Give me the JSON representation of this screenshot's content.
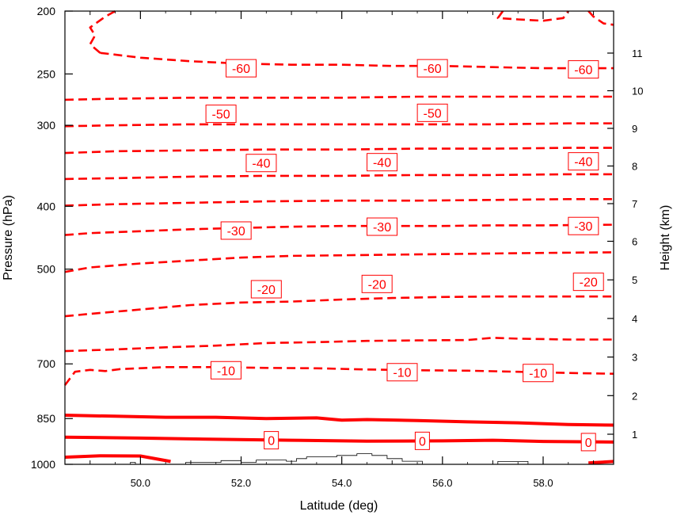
{
  "chart_data": {
    "type": "contour",
    "xlabel": "Latitude (deg)",
    "ylabel_left": "Pressure (hPa)",
    "ylabel_right": "Height (km)",
    "xlim": [
      48.5,
      59.4
    ],
    "x_ticks": [
      {
        "value": 50,
        "label": "50.0"
      },
      {
        "value": 52,
        "label": "52.0"
      },
      {
        "value": 54,
        "label": "54.0"
      },
      {
        "value": 56,
        "label": "56.0"
      },
      {
        "value": 58,
        "label": "58.0"
      }
    ],
    "pressure_range": [
      1000,
      200
    ],
    "pressure_scale": "log",
    "pressure_ticks": [
      {
        "value": 200,
        "label": "200"
      },
      {
        "value": 250,
        "label": "250"
      },
      {
        "value": 300,
        "label": "300"
      },
      {
        "value": 400,
        "label": "400"
      },
      {
        "value": 500,
        "label": "500"
      },
      {
        "value": 700,
        "label": "700"
      },
      {
        "value": 850,
        "label": "850"
      },
      {
        "value": 1000,
        "label": "1000"
      }
    ],
    "height_ticks": [
      {
        "value": 1,
        "label": "1"
      },
      {
        "value": 2,
        "label": "2"
      },
      {
        "value": 3,
        "label": "3"
      },
      {
        "value": 4,
        "label": "4"
      },
      {
        "value": 5,
        "label": "5"
      },
      {
        "value": 6,
        "label": "6"
      },
      {
        "value": 7,
        "label": "7"
      },
      {
        "value": 8,
        "label": "8"
      },
      {
        "value": 9,
        "label": "9"
      },
      {
        "value": 10,
        "label": "10"
      },
      {
        "value": 11,
        "label": "11"
      }
    ],
    "contour_color": "#ff0000",
    "terrain_color": "#000000",
    "contours": [
      {
        "level": -60,
        "points": [
          [
            49.2,
            232
          ],
          [
            50.0,
            236
          ],
          [
            51.0,
            239
          ],
          [
            52.0,
            241
          ],
          [
            53.0,
            242
          ],
          [
            54.0,
            242
          ],
          [
            55.0,
            243
          ],
          [
            56.0,
            243
          ],
          [
            57.0,
            244
          ],
          [
            58.0,
            245
          ],
          [
            59.4,
            245
          ]
        ]
      },
      {
        "level": -50,
        "points": [
          [
            48.5,
            274
          ],
          [
            49.5,
            273
          ],
          [
            51.0,
            272
          ],
          [
            52.5,
            272
          ],
          [
            54.0,
            272
          ],
          [
            55.5,
            271
          ],
          [
            57.0,
            271
          ],
          [
            58.5,
            271
          ],
          [
            59.4,
            271
          ]
        ]
      },
      {
        "level": -50,
        "points": [
          [
            48.5,
            301
          ],
          [
            49.5,
            300
          ],
          [
            51.0,
            299
          ],
          [
            52.5,
            299
          ],
          [
            54.0,
            299
          ],
          [
            55.5,
            299
          ],
          [
            57.0,
            299
          ],
          [
            58.5,
            298
          ],
          [
            59.4,
            298
          ]
        ]
      },
      {
        "level": -40,
        "points": [
          [
            48.5,
            331
          ],
          [
            49.5,
            329
          ],
          [
            51.0,
            328
          ],
          [
            52.5,
            327
          ],
          [
            54.0,
            327
          ],
          [
            55.5,
            326
          ],
          [
            57.0,
            326
          ],
          [
            58.5,
            325
          ],
          [
            59.4,
            325
          ]
        ]
      },
      {
        "level": -40,
        "points": [
          [
            48.5,
            363
          ],
          [
            49.5,
            362
          ],
          [
            51.0,
            360
          ],
          [
            52.5,
            359
          ],
          [
            54.0,
            359
          ],
          [
            55.5,
            358
          ],
          [
            57.0,
            358
          ],
          [
            58.5,
            357
          ],
          [
            59.4,
            357
          ]
        ]
      },
      {
        "level": -30,
        "points": [
          [
            48.5,
            399
          ],
          [
            49.5,
            397
          ],
          [
            51.0,
            395
          ],
          [
            52.5,
            393
          ],
          [
            54.0,
            392
          ],
          [
            55.5,
            392
          ],
          [
            57.0,
            391
          ],
          [
            58.5,
            390
          ],
          [
            59.4,
            390
          ]
        ]
      },
      {
        "level": -30,
        "points": [
          [
            48.5,
            443
          ],
          [
            49.0,
            440
          ],
          [
            50.0,
            437
          ],
          [
            51.0,
            434
          ],
          [
            52.0,
            432
          ],
          [
            53.0,
            430
          ],
          [
            54.0,
            429
          ],
          [
            55.0,
            429
          ],
          [
            56.0,
            429
          ],
          [
            57.0,
            428
          ],
          [
            58.0,
            428
          ],
          [
            59.4,
            427
          ]
        ]
      },
      {
        "level": -20,
        "points": [
          [
            48.5,
            505
          ],
          [
            49.0,
            497
          ],
          [
            50.0,
            490
          ],
          [
            51.0,
            485
          ],
          [
            52.0,
            480
          ],
          [
            53.0,
            477
          ],
          [
            54.0,
            476
          ],
          [
            55.0,
            475
          ],
          [
            56.0,
            474
          ],
          [
            57.0,
            473
          ],
          [
            58.0,
            472
          ],
          [
            59.4,
            471
          ]
        ]
      },
      {
        "level": -20,
        "points": [
          [
            48.5,
            591
          ],
          [
            49.0,
            586
          ],
          [
            50.0,
            577
          ],
          [
            51.0,
            568
          ],
          [
            52.0,
            563
          ],
          [
            53.0,
            561
          ],
          [
            54.0,
            557
          ],
          [
            55.0,
            554
          ],
          [
            56.0,
            552
          ],
          [
            57.0,
            551
          ],
          [
            58.0,
            551
          ],
          [
            59.4,
            551
          ]
        ]
      },
      {
        "level": -10,
        "points": [
          [
            48.5,
            669
          ],
          [
            49.5,
            665
          ],
          [
            50.5,
            660
          ],
          [
            51.5,
            656
          ],
          [
            52.5,
            650
          ],
          [
            53.5,
            648
          ],
          [
            54.5,
            645
          ],
          [
            55.5,
            644
          ],
          [
            56.5,
            643
          ],
          [
            57.0,
            638
          ],
          [
            57.5,
            640
          ],
          [
            58.5,
            642
          ],
          [
            59.4,
            642
          ]
        ]
      },
      {
        "level": -10,
        "points": [
          [
            48.5,
            755
          ],
          [
            48.7,
            720
          ],
          [
            49.0,
            715
          ],
          [
            49.3,
            718
          ],
          [
            49.6,
            713
          ],
          [
            50.5,
            708
          ],
          [
            51.5,
            708
          ],
          [
            52.5,
            710
          ],
          [
            53.5,
            711
          ],
          [
            54.5,
            714
          ],
          [
            55.5,
            716
          ],
          [
            56.5,
            717
          ],
          [
            57.5,
            720
          ],
          [
            58.5,
            723
          ],
          [
            59.4,
            725
          ]
        ]
      },
      {
        "level": 0,
        "points": [
          [
            48.5,
            840
          ],
          [
            49.5,
            843
          ],
          [
            50.5,
            846
          ],
          [
            51.5,
            846
          ],
          [
            52.5,
            850
          ],
          [
            53.5,
            848
          ],
          [
            54.0,
            855
          ],
          [
            54.5,
            853
          ],
          [
            55.5,
            856
          ],
          [
            56.5,
            860
          ],
          [
            57.5,
            863
          ],
          [
            58.5,
            868
          ],
          [
            59.4,
            870
          ]
        ]
      },
      {
        "level": 0,
        "points": [
          [
            48.5,
            908
          ],
          [
            50.0,
            911
          ],
          [
            51.5,
            915
          ],
          [
            53.0,
            918
          ],
          [
            54.5,
            921
          ],
          [
            56.0,
            920
          ],
          [
            57.0,
            918
          ],
          [
            58.0,
            922
          ],
          [
            59.4,
            924
          ]
        ]
      },
      {
        "level": 0,
        "points": [
          [
            48.5,
            975
          ],
          [
            49.2,
            970
          ],
          [
            50.0,
            971
          ],
          [
            50.6,
            990
          ]
        ]
      },
      {
        "level": 0,
        "points": [
          [
            58.9,
            995
          ],
          [
            59.4,
            990
          ]
        ]
      }
    ],
    "contours_partial": [
      {
        "level": -70,
        "points": [
          [
            49.2,
            232
          ],
          [
            49.0,
            225
          ],
          [
            49.1,
            218
          ],
          [
            49.0,
            212
          ],
          [
            49.3,
            204
          ],
          [
            49.5,
            200
          ]
        ]
      },
      {
        "level": -70,
        "points": [
          [
            57.2,
            200
          ],
          [
            57.1,
            205
          ],
          [
            57.5,
            206
          ],
          [
            58.0,
            207
          ],
          [
            58.4,
            205
          ],
          [
            58.5,
            200
          ]
        ]
      },
      {
        "level": -70,
        "points": [
          [
            58.9,
            200
          ],
          [
            59.0,
            204
          ],
          [
            59.2,
            209
          ],
          [
            59.4,
            210
          ]
        ]
      }
    ],
    "contour_labels": [
      {
        "text": "-60",
        "x": 52.0,
        "p": 245
      },
      {
        "text": "-60",
        "x": 55.8,
        "p": 245
      },
      {
        "text": "-60",
        "x": 58.8,
        "p": 246
      },
      {
        "text": "-50",
        "x": 51.6,
        "p": 288
      },
      {
        "text": "-50",
        "x": 55.8,
        "p": 287
      },
      {
        "text": "-40",
        "x": 52.4,
        "p": 343
      },
      {
        "text": "-40",
        "x": 54.8,
        "p": 342
      },
      {
        "text": "-40",
        "x": 58.8,
        "p": 341
      },
      {
        "text": "-30",
        "x": 51.9,
        "p": 436
      },
      {
        "text": "-30",
        "x": 54.8,
        "p": 430
      },
      {
        "text": "-30",
        "x": 58.8,
        "p": 429
      },
      {
        "text": "-20",
        "x": 52.5,
        "p": 537
      },
      {
        "text": "-20",
        "x": 54.7,
        "p": 527
      },
      {
        "text": "-20",
        "x": 58.9,
        "p": 523
      },
      {
        "text": "-10",
        "x": 51.7,
        "p": 716
      },
      {
        "text": "-10",
        "x": 55.2,
        "p": 721
      },
      {
        "text": "-10",
        "x": 57.9,
        "p": 723
      },
      {
        "text": "0",
        "x": 52.6,
        "p": 918
      },
      {
        "text": "0",
        "x": 55.6,
        "p": 920
      },
      {
        "text": "0",
        "x": 58.9,
        "p": 924
      }
    ],
    "terrain_steps": [
      [
        50.9,
        1000
      ],
      [
        50.9,
        993
      ],
      [
        51.6,
        993
      ],
      [
        51.6,
        987
      ],
      [
        52.0,
        987
      ],
      [
        52.0,
        993
      ],
      [
        52.3,
        993
      ],
      [
        52.3,
        985
      ],
      [
        52.9,
        985
      ],
      [
        52.9,
        989
      ],
      [
        53.1,
        989
      ],
      [
        53.1,
        980
      ],
      [
        53.3,
        980
      ],
      [
        53.3,
        974
      ],
      [
        53.9,
        974
      ],
      [
        53.9,
        969
      ],
      [
        54.3,
        969
      ],
      [
        54.3,
        963
      ],
      [
        54.6,
        963
      ],
      [
        54.6,
        969
      ],
      [
        54.9,
        969
      ],
      [
        54.9,
        980
      ],
      [
        55.2,
        980
      ],
      [
        55.2,
        989
      ],
      [
        55.6,
        989
      ],
      [
        55.6,
        1000
      ]
    ],
    "terrain_steps_2": [
      [
        57.1,
        1000
      ],
      [
        57.1,
        990
      ],
      [
        57.7,
        990
      ],
      [
        57.7,
        1000
      ]
    ],
    "terrain_steps_3": [
      [
        49.8,
        1000
      ],
      [
        49.8,
        993
      ],
      [
        49.9,
        993
      ],
      [
        49.9,
        1000
      ]
    ]
  }
}
